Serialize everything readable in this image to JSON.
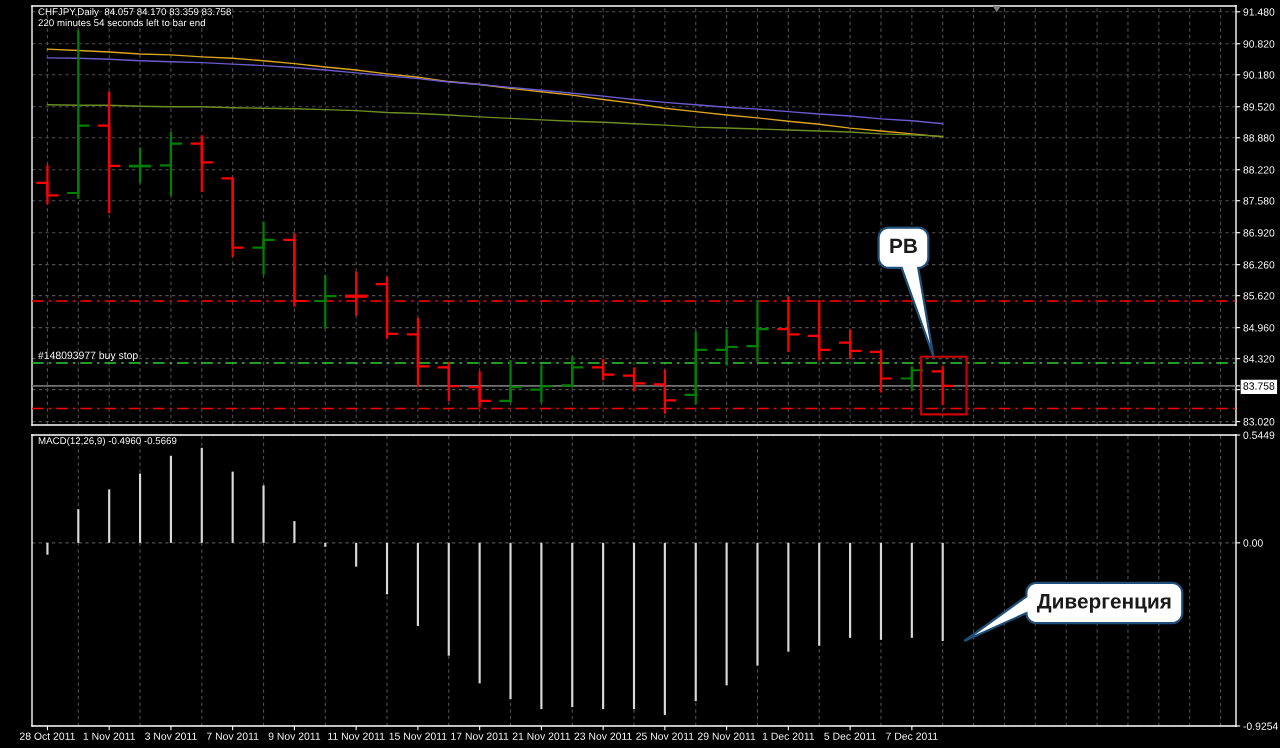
{
  "chart_data": [
    {
      "type": "candlestick",
      "title": "CHFJPY,Daily  84.057 84.170 83.359 83.758",
      "subtitle": "220 minutes 54 seconds left to bar end",
      "categories": [
        null,
        null,
        null,
        null,
        null,
        null,
        null,
        null,
        null,
        null,
        null,
        null,
        null,
        null,
        null,
        null,
        null,
        null,
        null,
        null,
        null,
        null,
        null,
        null,
        null,
        null,
        null,
        null,
        null,
        null,
        null,
        null,
        null,
        null,
        null,
        null,
        null,
        null,
        null
      ],
      "ohlc": [
        [
          87.95,
          88.32,
          87.51,
          87.69
        ],
        [
          87.74,
          91.1,
          87.62,
          89.13
        ],
        [
          89.13,
          89.83,
          87.32,
          88.3
        ],
        [
          88.29,
          88.68,
          87.95,
          88.3
        ],
        [
          88.31,
          89.0,
          87.68,
          88.76
        ],
        [
          88.76,
          88.93,
          87.76,
          88.37
        ],
        [
          88.04,
          88.04,
          86.42,
          86.61
        ],
        [
          86.61,
          87.15,
          86.05,
          86.77
        ],
        [
          86.77,
          86.91,
          85.39,
          85.51
        ],
        [
          85.51,
          86.05,
          84.94,
          85.61
        ],
        [
          85.62,
          86.12,
          85.21,
          85.6
        ],
        [
          85.86,
          86.01,
          84.73,
          84.83
        ],
        [
          84.82,
          85.16,
          83.74,
          84.16
        ],
        [
          84.14,
          84.25,
          83.44,
          83.75
        ],
        [
          83.73,
          84.06,
          83.31,
          83.45
        ],
        [
          83.45,
          84.29,
          83.41,
          83.73
        ],
        [
          83.68,
          84.19,
          83.41,
          83.75
        ],
        [
          83.77,
          84.37,
          83.72,
          84.14
        ],
        [
          84.14,
          84.31,
          83.87,
          83.99
        ],
        [
          83.97,
          84.14,
          83.65,
          83.81
        ],
        [
          83.79,
          84.09,
          83.18,
          83.46
        ],
        [
          83.57,
          84.88,
          83.38,
          84.5
        ],
        [
          84.5,
          84.92,
          84.18,
          84.56
        ],
        [
          84.58,
          85.53,
          84.24,
          84.93
        ],
        [
          84.93,
          85.6,
          84.46,
          84.82
        ],
        [
          84.79,
          85.53,
          84.28,
          84.5
        ],
        [
          84.65,
          84.92,
          84.31,
          84.48
        ],
        [
          84.46,
          84.5,
          83.62,
          83.91
        ],
        [
          83.91,
          84.16,
          83.66,
          84.08
        ],
        [
          84.057,
          84.17,
          83.359,
          83.758
        ],
        [
          null,
          null,
          null,
          null
        ],
        [
          null,
          null,
          null,
          null
        ],
        [
          null,
          null,
          null,
          null
        ],
        [
          null,
          null,
          null,
          null
        ],
        [
          null,
          null,
          null,
          null
        ],
        [
          null,
          null,
          null,
          null
        ],
        [
          null,
          null,
          null,
          null
        ],
        [
          null,
          null,
          null,
          null
        ],
        [
          null,
          null,
          null,
          null
        ]
      ],
      "colors": [
        "#ff0000",
        "#008000",
        "#ff0000",
        "#008000",
        "#008000",
        "#ff0000",
        "#ff0000",
        "#008000",
        "#ff0000",
        "#008000",
        "#ff0000",
        "#ff0000",
        "#ff0000",
        "#ff0000",
        "#ff0000",
        "#008000",
        "#008000",
        "#008000",
        "#ff0000",
        "#ff0000",
        "#ff0000",
        "#008000",
        "#008000",
        "#008000",
        "#ff0000",
        "#ff0000",
        "#ff0000",
        "#ff0000",
        "#008000",
        "#ff0000",
        null,
        null,
        null,
        null,
        null,
        null,
        null,
        null,
        null
      ],
      "series": [
        {
          "type": "line",
          "color": "#daa520",
          "values": [
            90.71,
            90.68,
            90.65,
            90.61,
            90.59,
            90.55,
            90.52,
            90.47,
            90.41,
            90.34,
            90.28,
            90.2,
            90.13,
            90.04,
            89.98,
            89.9,
            89.83,
            89.76,
            89.67,
            89.59,
            89.49,
            89.42,
            89.35,
            89.29,
            89.22,
            89.16,
            89.08,
            89.02,
            88.96,
            88.9,
            null,
            null,
            null,
            null,
            null,
            null,
            null,
            null,
            null
          ]
        },
        {
          "type": "line",
          "color": "#6a5acd",
          "values": [
            90.53,
            90.52,
            90.5,
            90.47,
            90.45,
            90.43,
            90.4,
            90.37,
            90.33,
            90.28,
            90.22,
            90.16,
            90.1,
            90.03,
            89.98,
            89.92,
            89.86,
            89.8,
            89.74,
            89.67,
            89.61,
            89.56,
            89.51,
            89.47,
            89.42,
            89.37,
            89.33,
            89.27,
            89.23,
            89.17,
            null,
            null,
            null,
            null,
            null,
            null,
            null,
            null,
            null
          ]
        },
        {
          "type": "line",
          "color": "#6b8e23",
          "values": [
            89.56,
            89.55,
            89.55,
            89.53,
            89.52,
            89.52,
            89.5,
            89.49,
            89.48,
            89.46,
            89.44,
            89.4,
            89.38,
            89.35,
            89.31,
            89.28,
            89.25,
            89.22,
            89.2,
            89.17,
            89.14,
            89.1,
            89.08,
            89.06,
            89.04,
            89.02,
            89.0,
            88.96,
            88.94,
            88.91,
            null,
            null,
            null,
            null,
            null,
            null,
            null,
            null,
            null
          ]
        }
      ],
      "ylim": [
        82.95,
        91.6
      ],
      "yticks": [
        {
          "value": 91.48,
          "label": "91.480"
        },
        {
          "value": 90.82,
          "label": "90.820"
        },
        {
          "value": 90.18,
          "label": "90.180"
        },
        {
          "value": 89.52,
          "label": "89.520"
        },
        {
          "value": 88.88,
          "label": "88.880"
        },
        {
          "value": 88.22,
          "label": "88.220"
        },
        {
          "value": 87.58,
          "label": "87.580"
        },
        {
          "value": 86.92,
          "label": "86.920"
        },
        {
          "value": 86.26,
          "label": "86.260"
        },
        {
          "value": 85.62,
          "label": "85.620"
        },
        {
          "value": 84.96,
          "label": "84.960"
        },
        {
          "value": 84.32,
          "label": "84.320"
        },
        83.758,
        {
          "value": 83.68,
          "label": null
        },
        {
          "value": 83.02,
          "label": "83.020"
        }
      ],
      "ref_lines": [
        {
          "axis": "y",
          "value": 85.51,
          "color": "#ff0000",
          "line_style": "dashdot"
        },
        {
          "axis": "y",
          "value": 84.23,
          "label": "#148093977 buy stop",
          "color": "#32cd32",
          "line_style": "dashdot"
        },
        {
          "axis": "y",
          "value": 83.758,
          "color": "#707070",
          "line_style": "solid"
        },
        {
          "axis": "y",
          "value": 83.29,
          "color": "#ff0000",
          "line_style": "dashdot"
        }
      ],
      "annotations": [
        "PB"
      ],
      "grid": true
    },
    {
      "type": "bar",
      "title": "MACD(12,26,9) -0.4960 -0.5669",
      "categories": [
        "28 Oct 2011",
        null,
        "1 Nov 2011",
        null,
        "3 Nov 2011",
        null,
        "7 Nov 2011",
        null,
        "9 Nov 2011",
        null,
        "11 Nov 2011",
        null,
        "15 Nov 2011",
        null,
        "17 Nov 2011",
        null,
        "21 Nov 2011",
        null,
        "23 Nov 2011",
        null,
        "25 Nov 2011",
        null,
        "29 Nov 2011",
        null,
        "1 Dec 2011",
        null,
        "5 Dec 2011",
        null,
        "7 Dec 2011",
        null,
        null,
        null,
        null,
        null,
        null,
        null,
        null,
        null,
        null
      ],
      "values": [
        -0.06,
        0.17,
        0.27,
        0.35,
        0.44,
        0.48,
        0.36,
        0.29,
        0.11,
        -0.02,
        -0.12,
        -0.26,
        -0.42,
        -0.57,
        -0.71,
        -0.79,
        -0.84,
        -0.83,
        -0.84,
        -0.84,
        -0.87,
        -0.8,
        -0.72,
        -0.62,
        -0.55,
        -0.52,
        -0.48,
        -0.49,
        -0.48,
        -0.496,
        null,
        null,
        null,
        null,
        null,
        null,
        null,
        null,
        null
      ],
      "color": "#d9d9d9",
      "ylim": [
        -0.9254,
        0.5449
      ],
      "yticks": [
        0.5449,
        {
          "value": 0,
          "label": "0.00"
        },
        -0.9254
      ],
      "annotations": [
        "Дивергенция"
      ],
      "grid": true
    }
  ]
}
